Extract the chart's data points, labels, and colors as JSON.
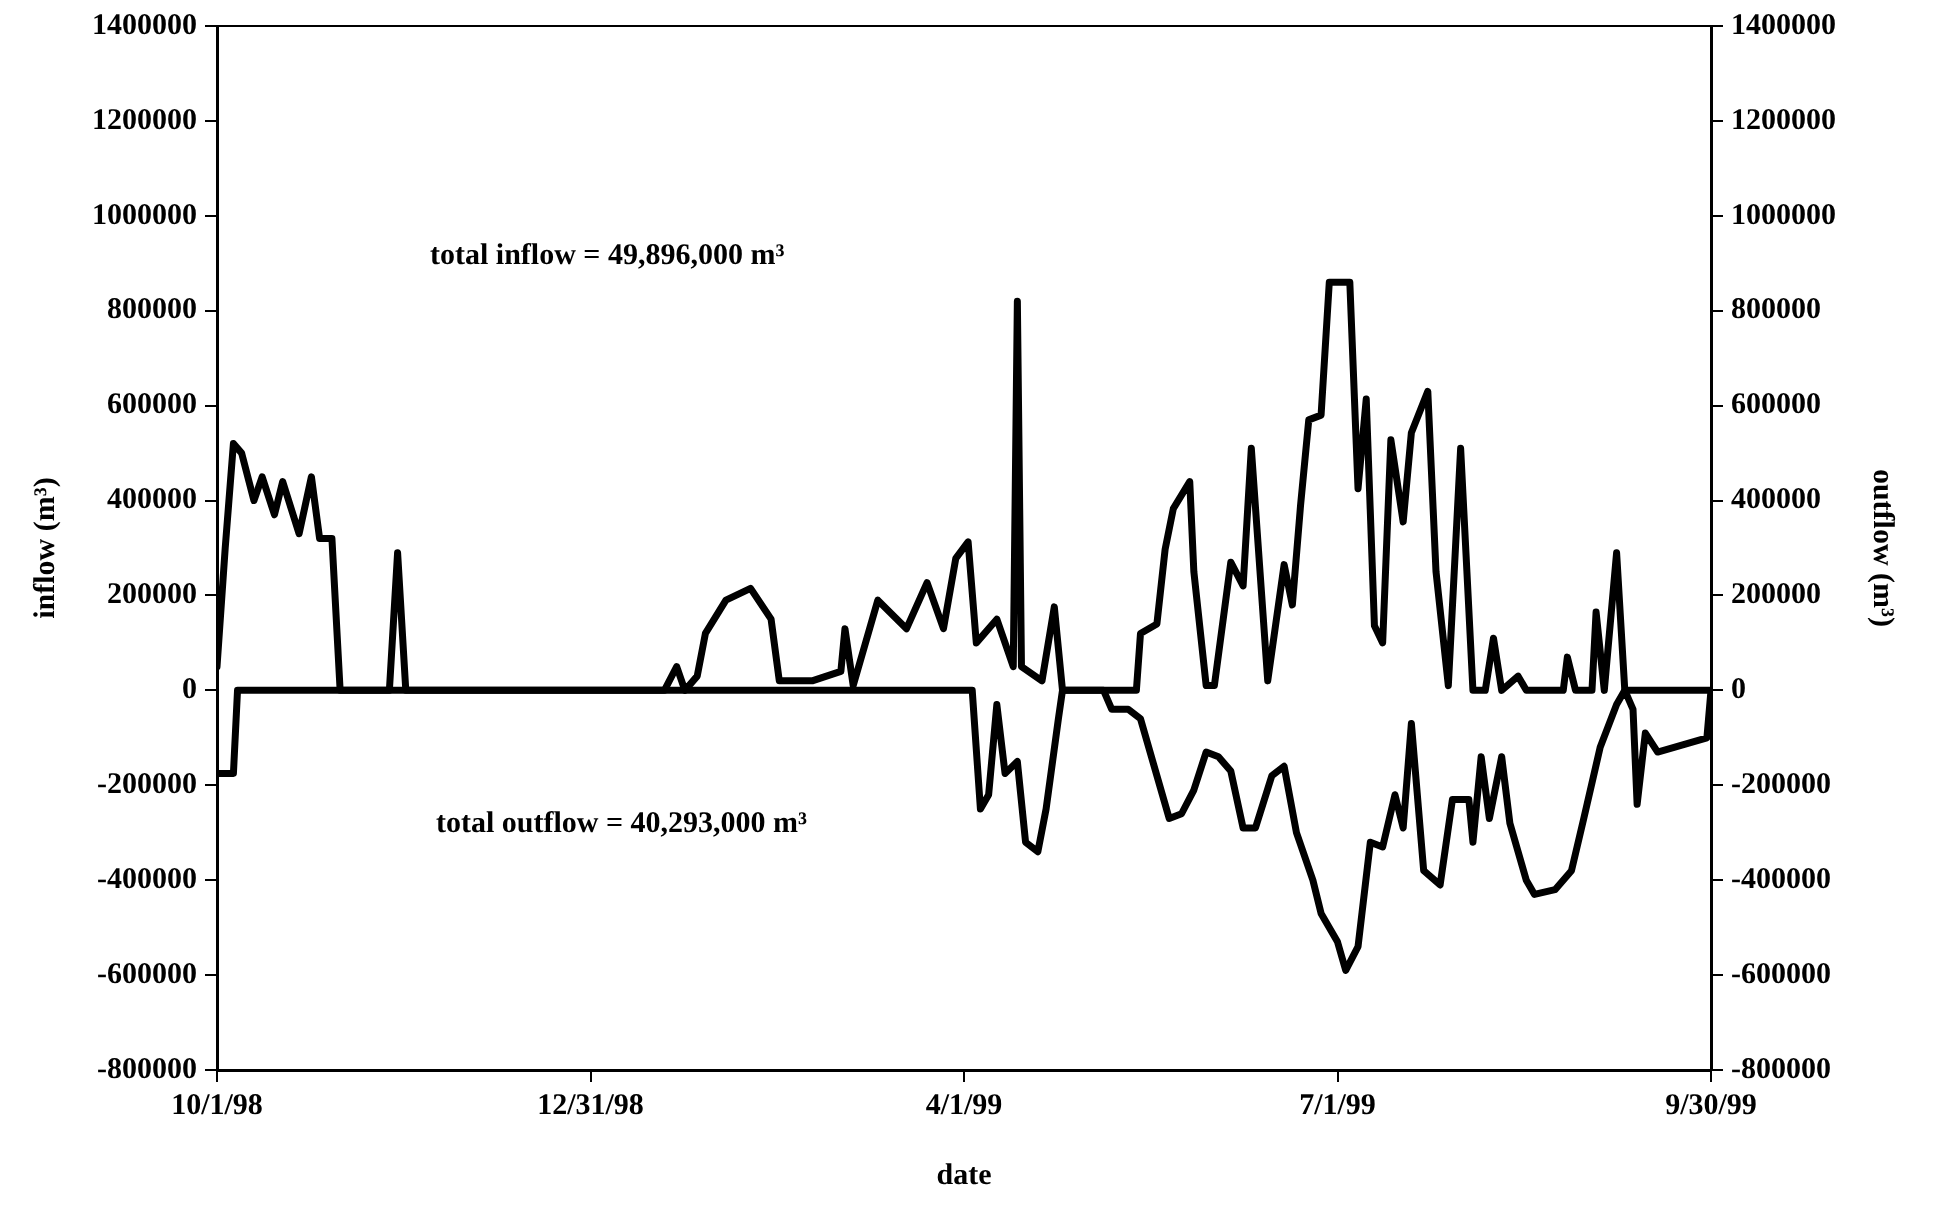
{
  "chart_data": {
    "type": "line",
    "xlabel": "date",
    "ylabel": "inflow (m³)",
    "y2label": "outflow (m³)",
    "xlim": [
      "1998-10-01",
      "1999-09-30"
    ],
    "xticks": [
      {
        "value": "1998-10-01",
        "label": "10/1/98"
      },
      {
        "value": "1998-12-31",
        "label": "12/31/98"
      },
      {
        "value": "1999-04-01",
        "label": "4/1/99"
      },
      {
        "value": "1999-07-01",
        "label": "7/1/99"
      },
      {
        "value": "1999-09-30",
        "label": "9/30/99"
      }
    ],
    "ylim": [
      -800000,
      1400000
    ],
    "yticks": [
      -800000,
      -600000,
      -400000,
      -200000,
      0,
      200000,
      400000,
      600000,
      800000,
      1000000,
      1200000,
      1400000
    ],
    "y2lim": [
      -800000,
      1400000
    ],
    "y2ticks": [
      -800000,
      -600000,
      -400000,
      -200000,
      0,
      200000,
      400000,
      600000,
      800000,
      1000000,
      1200000,
      1400000
    ],
    "grid": false,
    "legend": false,
    "marker": "none",
    "line_style": "solid",
    "annotations": [
      "total inflow = 49,896,000 m³",
      "total outflow = 40,293,000 m³"
    ],
    "series": [
      {
        "color": "#000000",
        "x": [
          "1998-10-01",
          "1998-10-03",
          "1998-10-05",
          "1998-10-07",
          "1998-10-10",
          "1998-10-12",
          "1998-10-15",
          "1998-10-17",
          "1998-10-21",
          "1998-10-24",
          "1998-10-26",
          "1998-10-29",
          "1998-10-31",
          "1998-11-12",
          "1998-11-14",
          "1998-11-16",
          "1999-01-18",
          "1999-01-21",
          "1999-01-23",
          "1999-01-26",
          "1999-01-28",
          "1999-02-02",
          "1999-02-08",
          "1999-02-13",
          "1999-02-15",
          "1999-02-23",
          "1999-03-02",
          "1999-03-03",
          "1999-03-05",
          "1999-03-11",
          "1999-03-18",
          "1999-03-23",
          "1999-03-27",
          "1999-03-30",
          "1999-04-02",
          "1999-04-04",
          "1999-04-09",
          "1999-04-13",
          "1999-04-14",
          "1999-04-15",
          "1999-04-20",
          "1999-04-23",
          "1999-04-25",
          "1999-05-13",
          "1999-05-14",
          "1999-05-18",
          "1999-05-20",
          "1999-05-22",
          "1999-05-26",
          "1999-05-27",
          "1999-05-30",
          "1999-06-01",
          "1999-06-05",
          "1999-06-08",
          "1999-06-10",
          "1999-06-14",
          "1999-06-18",
          "1999-06-20",
          "1999-06-22",
          "1999-06-24",
          "1999-06-27",
          "1999-06-29",
          "1999-07-04",
          "1999-07-06",
          "1999-07-08",
          "1999-07-10",
          "1999-07-12",
          "1999-07-14",
          "1999-07-17",
          "1999-07-19",
          "1999-07-23",
          "1999-07-25",
          "1999-07-28",
          "1999-07-31",
          "1999-08-03",
          "1999-08-06",
          "1999-08-08",
          "1999-08-10",
          "1999-08-14",
          "1999-08-16",
          "1999-08-25",
          "1999-08-26",
          "1999-08-28",
          "1999-09-01",
          "1999-09-02",
          "1999-09-04",
          "1999-09-07",
          "1999-09-09",
          "1999-09-30"
        ],
        "values": [
          50000,
          300000,
          520000,
          500000,
          400000,
          450000,
          370000,
          440000,
          330000,
          450000,
          320000,
          320000,
          0,
          0,
          290000,
          0,
          0,
          50000,
          0,
          30000,
          120000,
          190000,
          215000,
          150000,
          20000,
          20000,
          40000,
          130000,
          10000,
          190000,
          130000,
          227000,
          130000,
          278000,
          313000,
          100000,
          150000,
          50000,
          820000,
          50000,
          20000,
          176000,
          0,
          0,
          120000,
          140000,
          297000,
          383000,
          440000,
          250000,
          10000,
          10000,
          270000,
          220000,
          510000,
          20000,
          265000,
          180000,
          390000,
          570000,
          580000,
          860000,
          860000,
          425000,
          614000,
          136000,
          100000,
          528000,
          355000,
          543000,
          630000,
          250000,
          10000,
          510000,
          0,
          0,
          110000,
          0,
          30000,
          0,
          0,
          70000,
          0,
          0,
          165000,
          0,
          290000,
          0,
          0
        ]
      },
      {
        "color": "#000000",
        "x": [
          "1998-10-01",
          "1998-10-05",
          "1998-10-06",
          "1999-04-03",
          "1999-04-05",
          "1999-04-07",
          "1999-04-09",
          "1999-04-11",
          "1999-04-14",
          "1999-04-16",
          "1999-04-19",
          "1999-04-21",
          "1999-04-24",
          "1999-04-25",
          "1999-05-05",
          "1999-05-07",
          "1999-05-11",
          "1999-05-14",
          "1999-05-18",
          "1999-05-21",
          "1999-05-24",
          "1999-05-27",
          "1999-05-30",
          "1999-06-02",
          "1999-06-05",
          "1999-06-08",
          "1999-06-11",
          "1999-06-15",
          "1999-06-18",
          "1999-06-21",
          "1999-06-25",
          "1999-06-27",
          "1999-07-01",
          "1999-07-03",
          "1999-07-06",
          "1999-07-09",
          "1999-07-12",
          "1999-07-15",
          "1999-07-17",
          "1999-07-19",
          "1999-07-22",
          "1999-07-26",
          "1999-07-29",
          "1999-08-02",
          "1999-08-03",
          "1999-08-05",
          "1999-08-07",
          "1999-08-10",
          "1999-08-12",
          "1999-08-16",
          "1999-08-18",
          "1999-08-23",
          "1999-08-27",
          "1999-08-30",
          "1999-09-03",
          "1999-09-07",
          "1999-09-09",
          "1999-09-11",
          "1999-09-12",
          "1999-09-14",
          "1999-09-17",
          "1999-09-21",
          "1999-09-29",
          "1999-09-30"
        ],
        "values": [
          -175000,
          -175000,
          0,
          0,
          -250000,
          -220000,
          -30000,
          -175000,
          -150000,
          -320000,
          -340000,
          -250000,
          -60000,
          0,
          0,
          -40000,
          -40000,
          -60000,
          -180000,
          -270000,
          -260000,
          -210000,
          -130000,
          -140000,
          -170000,
          -290000,
          -290000,
          -180000,
          -160000,
          -300000,
          -400000,
          -470000,
          -530000,
          -590000,
          -540000,
          -320000,
          -330000,
          -220000,
          -290000,
          -70000,
          -380000,
          -410000,
          -230000,
          -230000,
          -320000,
          -140000,
          -270000,
          -140000,
          -280000,
          -400000,
          -430000,
          -420000,
          -380000,
          -270000,
          -120000,
          -30000,
          0,
          -40000,
          -240000,
          -90000,
          -130000,
          -120000,
          -100000,
          0
        ]
      }
    ]
  }
}
